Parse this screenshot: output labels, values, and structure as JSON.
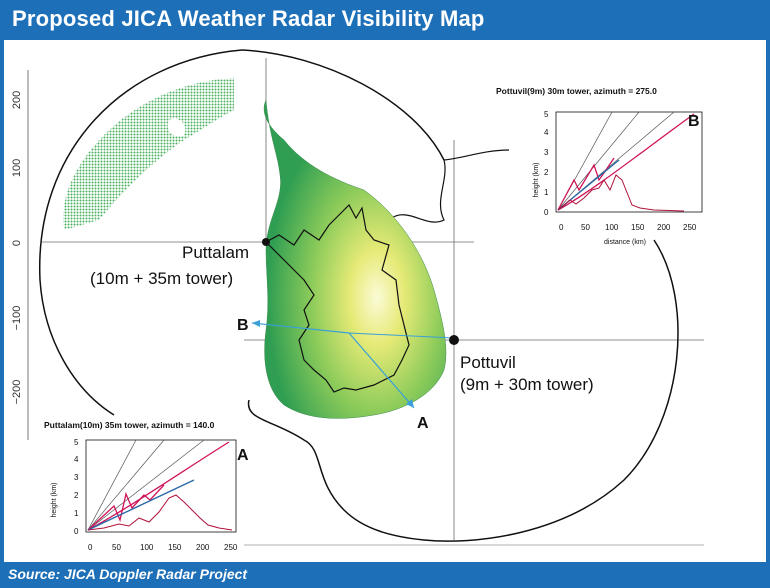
{
  "header": {
    "title": "Proposed JICA Weather Radar Visibility Map"
  },
  "footer": {
    "source": "Source: JICA Doppler Radar Project"
  },
  "main_axis": {
    "y_ticks": [
      "200",
      "100",
      "0",
      "−100",
      "−200"
    ]
  },
  "stations": {
    "puttalam": {
      "name": "Puttalam",
      "spec": "(10m + 35m tower)"
    },
    "pottuvil": {
      "name": "Pottuvil",
      "spec": "(9m + 30m tower)"
    }
  },
  "markers": {
    "a": "A",
    "b": "B"
  },
  "inset_b": {
    "title": "Pottuvil(9m) 30m tower,   azimuth = 275.0",
    "label": "B",
    "xlabel": "distance (km)",
    "ylabel": "height (km)",
    "x_ticks": [
      "0",
      "50",
      "100",
      "150",
      "200",
      "250"
    ],
    "y_ticks": [
      "0",
      "1",
      "2",
      "3",
      "4",
      "5"
    ]
  },
  "inset_a": {
    "title": "Puttalam(10m) 35m tower,   azimuth = 140.0",
    "label": "A",
    "ylabel": "height (km)",
    "x_ticks": [
      "0",
      "50",
      "100",
      "150",
      "200",
      "250"
    ],
    "y_ticks": [
      "0",
      "1",
      "2",
      "3",
      "4",
      "5"
    ]
  },
  "colors": {
    "header_bg": "#1d6fb8",
    "terrain_low": "#2f9e52",
    "terrain_high": "#f2ee8a",
    "beam_line": "#d0145a",
    "terrain_profile": "#b0103a",
    "ray_line": "#3aa0d8",
    "blue_line": "#2a6aa8"
  }
}
